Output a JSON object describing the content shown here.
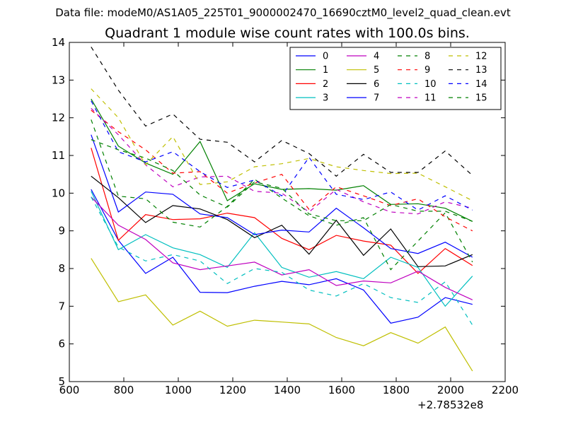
{
  "suptitle": "Data file: modeM0/AS1A05_225T01_9000002470_16690cztM0_level2_quad_clean.evt",
  "chart_data": {
    "type": "line",
    "title": "Quadrant 1 module wise count rates with 100.0s bins.",
    "xlabel": "",
    "ylabel": "",
    "x_offset_label": "+2.78532e8",
    "xlim": [
      600,
      2200
    ],
    "ylim": [
      5,
      14
    ],
    "x_ticks": [
      600,
      800,
      1000,
      1200,
      1400,
      1600,
      1800,
      2000,
      2200
    ],
    "y_ticks": [
      5,
      6,
      7,
      8,
      9,
      10,
      11,
      12,
      13,
      14
    ],
    "grid": false,
    "legend_position": "top-right",
    "legend_columns": 4,
    "x": [
      680,
      780,
      880,
      980,
      1080,
      1180,
      1280,
      1380,
      1480,
      1580,
      1680,
      1780,
      1880,
      1980,
      2080
    ],
    "series": [
      {
        "name": "0",
        "color": "#0000ff",
        "dash": "solid",
        "values": [
          10.1,
          8.75,
          7.87,
          8.3,
          7.37,
          7.36,
          7.53,
          7.66,
          7.57,
          7.73,
          7.43,
          6.55,
          6.71,
          7.23,
          7.05
        ]
      },
      {
        "name": "1",
        "color": "#008000",
        "dash": "solid",
        "values": [
          12.5,
          11.25,
          10.8,
          10.5,
          11.37,
          9.8,
          10.25,
          10.1,
          10.12,
          10.08,
          10.2,
          9.7,
          9.72,
          9.6,
          9.25
        ]
      },
      {
        "name": "2",
        "color": "#ff0000",
        "dash": "solid",
        "values": [
          11.2,
          8.75,
          9.43,
          9.3,
          9.32,
          9.47,
          9.35,
          8.8,
          8.5,
          8.88,
          8.73,
          8.62,
          7.87,
          8.53,
          8.08
        ]
      },
      {
        "name": "3",
        "color": "#00bfbf",
        "dash": "solid",
        "values": [
          10.05,
          8.5,
          8.9,
          8.55,
          8.37,
          8.03,
          8.95,
          8.03,
          7.77,
          7.92,
          7.73,
          8.3,
          8.03,
          7.0,
          7.8
        ]
      },
      {
        "name": "4",
        "color": "#bf00bf",
        "dash": "solid",
        "values": [
          9.9,
          9.15,
          8.77,
          8.15,
          7.97,
          8.07,
          8.17,
          7.83,
          7.97,
          7.55,
          7.67,
          7.62,
          7.93,
          7.5,
          7.17
        ]
      },
      {
        "name": "5",
        "color": "#bfbf00",
        "dash": "solid",
        "values": [
          8.27,
          7.12,
          7.3,
          6.5,
          6.87,
          6.47,
          6.63,
          6.58,
          6.53,
          6.17,
          5.95,
          6.3,
          6.02,
          6.45,
          5.28
        ]
      },
      {
        "name": "6",
        "color": "#000000",
        "dash": "solid",
        "values": [
          10.45,
          9.88,
          9.22,
          9.67,
          9.58,
          9.3,
          8.82,
          9.15,
          8.38,
          9.28,
          8.35,
          9.05,
          8.05,
          8.07,
          8.37
        ]
      },
      {
        "name": "7",
        "color": "#0000ff",
        "dash": "solid",
        "values": [
          11.55,
          9.5,
          10.03,
          9.97,
          9.45,
          9.35,
          8.9,
          9.02,
          8.97,
          9.6,
          9.08,
          8.53,
          8.4,
          8.7,
          8.3
        ]
      },
      {
        "name": "8",
        "color": "#008000",
        "dash": "dashed",
        "values": [
          11.95,
          9.92,
          9.85,
          9.23,
          9.1,
          9.65,
          10.37,
          9.87,
          9.4,
          9.15,
          9.35,
          7.97,
          8.73,
          9.48,
          8.17
        ]
      },
      {
        "name": "9",
        "color": "#ff0000",
        "dash": "dashed",
        "values": [
          12.2,
          11.63,
          11.15,
          10.53,
          10.57,
          10.0,
          10.27,
          10.5,
          9.57,
          10.17,
          9.93,
          9.67,
          9.85,
          9.37,
          9.0
        ]
      },
      {
        "name": "10",
        "color": "#00bfbf",
        "dash": "dashed",
        "values": [
          9.9,
          8.57,
          8.2,
          8.37,
          8.2,
          7.6,
          8.0,
          7.9,
          7.43,
          7.27,
          7.6,
          7.23,
          7.1,
          7.65,
          6.5
        ]
      },
      {
        "name": "11",
        "color": "#bf00bf",
        "dash": "dashed",
        "values": [
          12.25,
          11.55,
          10.75,
          10.17,
          10.43,
          10.45,
          10.05,
          10.0,
          9.5,
          10.1,
          9.77,
          9.5,
          9.45,
          9.77,
          9.6
        ]
      },
      {
        "name": "12",
        "color": "#bfbf00",
        "dash": "dashed",
        "values": [
          12.77,
          12.0,
          10.75,
          11.5,
          10.23,
          10.3,
          10.7,
          10.78,
          10.92,
          10.7,
          10.6,
          10.52,
          10.53,
          10.17,
          9.8
        ]
      },
      {
        "name": "13",
        "color": "#000000",
        "dash": "dashed",
        "values": [
          13.88,
          12.73,
          11.78,
          12.1,
          11.43,
          11.35,
          10.83,
          11.4,
          11.05,
          10.45,
          11.03,
          10.55,
          10.55,
          11.12,
          10.47
        ]
      },
      {
        "name": "14",
        "color": "#0000ff",
        "dash": "dashed",
        "values": [
          12.45,
          11.1,
          10.83,
          11.1,
          10.57,
          10.15,
          10.35,
          9.93,
          10.95,
          9.97,
          9.83,
          10.03,
          9.55,
          9.93,
          9.55
        ]
      },
      {
        "name": "15",
        "color": "#008000",
        "dash": "dashed",
        "values": [
          11.42,
          11.15,
          10.93,
          10.6,
          9.95,
          9.63,
          10.3,
          10.13,
          9.45,
          9.27,
          9.27,
          9.7,
          9.52,
          9.52,
          9.25
        ]
      }
    ]
  }
}
